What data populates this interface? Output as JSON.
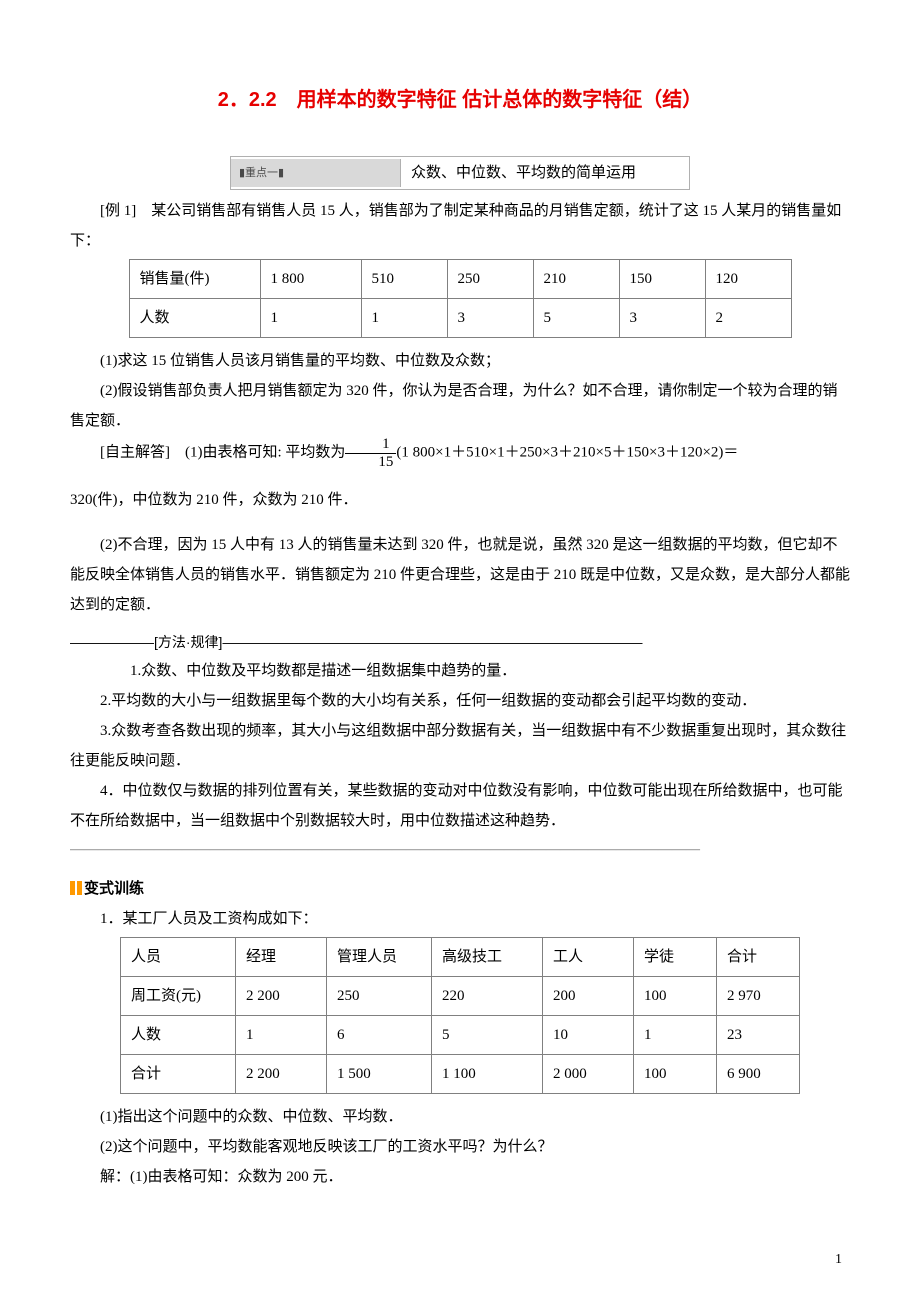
{
  "title": "2．2.2　用样本的数字特征 估计总体的数字特征（结）",
  "topicBox": {
    "left": "▮重点一▮",
    "right": "众数、中位数、平均数的简单运用"
  },
  "example1": {
    "lead": "[例 1]　某公司销售部有销售人员 15 人，销售部为了制定某种商品的月销售定额，统计了这 15 人某月的销售量如下：",
    "table": {
      "cols": [
        "销售量(件)",
        "1 800",
        "510",
        "250",
        "210",
        "150",
        "120"
      ],
      "row2": [
        "人数",
        "1",
        "1",
        "3",
        "5",
        "3",
        "2"
      ]
    },
    "q1": "(1)求这 15 位销售人员该月销售量的平均数、中位数及众数；",
    "q2": "(2)假设销售部负责人把月销售额定为 320 件，你认为是否合理，为什么？如不合理，请你制定一个较为合理的销售定额．",
    "ansPrefix": "[自主解答]　(1)由表格可知: 平均数为",
    "fracNum": "1",
    "fracDen": "15",
    "ansAfterFrac": "(1 800×1＋510×1＋250×3＋210×5＋150×3＋120×2)＝",
    "ansLine2": "320(件)，中位数为 210 件，众数为 210 件．",
    "ans2": "(2)不合理，因为 15 人中有 13 人的销售量未达到 320 件，也就是说，虽然 320 是这一组数据的平均数，但它却不能反映全体销售人员的销售水平．销售额定为 210 件更合理些，这是由于 210 既是中位数，又是众数，是大部分人都能达到的定额．"
  },
  "method": {
    "titleLine": "——————[方法·规律]——————————————————————————————",
    "p1": "1.众数、中位数及平均数都是描述一组数据集中趋势的量．",
    "p2": "2.平均数的大小与一组数据里每个数的大小均有关系，任何一组数据的变动都会引起平均数的变动．",
    "p3": "3.众数考查各数出现的频率，其大小与这组数据中部分数据有关，当一组数据中有不少数据重复出现时，其众数往往更能反映问题．",
    "p4": "4．中位数仅与数据的排列位置有关，某些数据的变动对中位数没有影响，中位数可能出现在所给数据中，也可能不在所给数据中，当一组数据中个别数据较大时，用中位数描述这种趋势．",
    "endLine": "—————————————————————————————————————————————"
  },
  "variant": {
    "label": "变式训练",
    "q1": "1．某工厂人员及工资构成如下：",
    "table": {
      "r1": [
        "人员",
        "经理",
        "管理人员",
        "高级技工",
        "工人",
        "学徒",
        "合计"
      ],
      "r2": [
        "周工资(元)",
        "2 200",
        "250",
        "220",
        "200",
        "100",
        "2 970"
      ],
      "r3": [
        "人数",
        "1",
        "6",
        "5",
        "10",
        "1",
        "23"
      ],
      "r4": [
        "合计",
        "2 200",
        "1 500",
        "1 100",
        "2 000",
        "100",
        "6 900"
      ]
    },
    "sub1": "(1)指出这个问题中的众数、中位数、平均数．",
    "sub2": "(2)这个问题中，平均数能客观地反映该工厂的工资水平吗？为什么？",
    "ans": "解：(1)由表格可知：众数为 200 元．"
  },
  "pageNum": "1",
  "colWidths": {
    "t1": [
      110,
      80,
      65,
      65,
      65,
      65,
      65
    ],
    "t2": [
      94,
      70,
      84,
      90,
      70,
      62,
      62
    ]
  }
}
